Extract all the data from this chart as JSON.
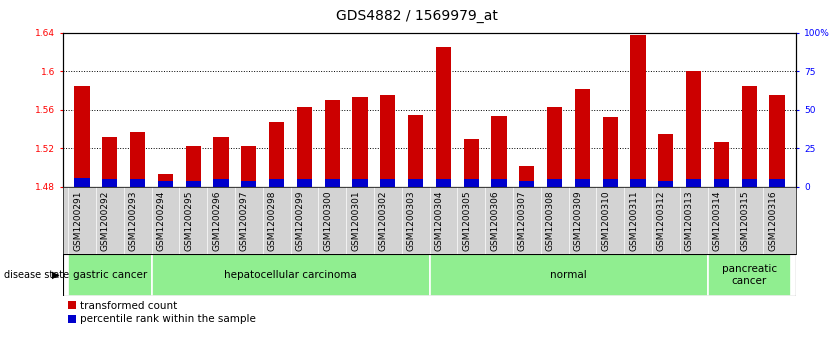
{
  "title": "GDS4882 / 1569979_at",
  "samples": [
    "GSM1200291",
    "GSM1200292",
    "GSM1200293",
    "GSM1200294",
    "GSM1200295",
    "GSM1200296",
    "GSM1200297",
    "GSM1200298",
    "GSM1200299",
    "GSM1200300",
    "GSM1200301",
    "GSM1200302",
    "GSM1200303",
    "GSM1200304",
    "GSM1200305",
    "GSM1200306",
    "GSM1200307",
    "GSM1200308",
    "GSM1200309",
    "GSM1200310",
    "GSM1200311",
    "GSM1200312",
    "GSM1200313",
    "GSM1200314",
    "GSM1200315",
    "GSM1200316"
  ],
  "transformed_count": [
    1.585,
    1.532,
    1.537,
    1.493,
    1.522,
    1.532,
    1.522,
    1.547,
    1.563,
    1.57,
    1.573,
    1.575,
    1.555,
    1.625,
    1.53,
    1.554,
    1.502,
    1.563,
    1.582,
    1.553,
    1.638,
    1.535,
    1.6,
    1.527,
    1.585,
    1.575
  ],
  "percentile_rank": [
    6,
    5,
    5,
    4,
    4,
    5,
    4,
    5,
    5,
    5,
    5,
    5,
    5,
    5,
    5,
    5,
    4,
    5,
    5,
    5,
    5,
    4,
    5,
    5,
    5,
    5
  ],
  "ylim_left": [
    1.48,
    1.64
  ],
  "ylim_right": [
    0,
    100
  ],
  "yticks_left": [
    1.48,
    1.52,
    1.56,
    1.6,
    1.64
  ],
  "yticks_right": [
    0,
    25,
    50,
    75,
    100
  ],
  "ytick_labels_right": [
    "0",
    "25",
    "50",
    "75",
    "100%"
  ],
  "groups": [
    {
      "label": "gastric cancer",
      "start": 0,
      "end": 3
    },
    {
      "label": "hepatocellular carcinoma",
      "start": 3,
      "end": 13
    },
    {
      "label": "normal",
      "start": 13,
      "end": 23
    },
    {
      "label": "pancreatic\ncancer",
      "start": 23,
      "end": 26
    }
  ],
  "group_color": "#90EE90",
  "group_border_color": "white",
  "bar_color_red": "#CC0000",
  "bar_color_blue": "#0000CC",
  "background_color": "#ffffff",
  "tick_bg_color": "#d3d3d3",
  "bar_width": 0.55,
  "title_fontsize": 10,
  "tick_fontsize": 6.5,
  "legend_fontsize": 7.5,
  "disease_label_fontsize": 7.5
}
